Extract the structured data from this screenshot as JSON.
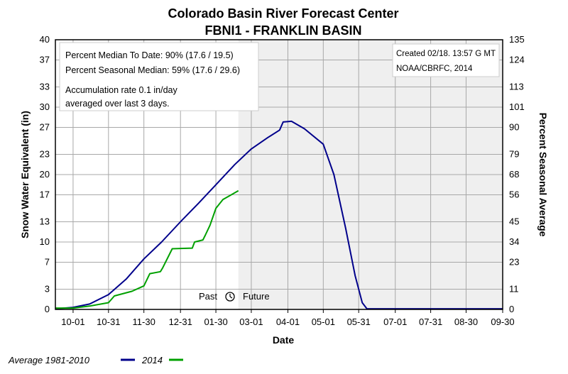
{
  "chart_data": {
    "type": "line",
    "title": "Colorado Basin River Forecast Center",
    "subtitle": "FBNI1 - FRANKLIN BASIN",
    "xlabel": "Date",
    "ylabel": "Snow Water Equivalent (in)",
    "y2label": "Percent Seasonal Average",
    "x_range": [
      "2013-09-16",
      "2014-09-30"
    ],
    "ylim": [
      0,
      40
    ],
    "y_ticks": [
      0,
      3,
      7,
      10,
      13,
      17,
      20,
      23,
      27,
      30,
      33,
      37,
      40
    ],
    "y2_ticks": [
      0,
      11,
      23,
      34,
      45,
      56,
      68,
      79,
      90,
      101,
      113,
      124,
      135
    ],
    "x_ticks": [
      {
        "label": "10-01",
        "date": "2013-10-01"
      },
      {
        "label": "10-31",
        "date": "2013-10-31"
      },
      {
        "label": "11-30",
        "date": "2013-11-30"
      },
      {
        "label": "12-31",
        "date": "2013-12-31"
      },
      {
        "label": "01-30",
        "date": "2014-01-30"
      },
      {
        "label": "03-01",
        "date": "2014-03-01"
      },
      {
        "label": "04-01",
        "date": "2014-04-01"
      },
      {
        "label": "05-01",
        "date": "2014-05-01"
      },
      {
        "label": "05-31",
        "date": "2014-05-31"
      },
      {
        "label": "07-01",
        "date": "2014-07-01"
      },
      {
        "label": "07-31",
        "date": "2014-07-31"
      },
      {
        "label": "08-30",
        "date": "2014-08-30"
      },
      {
        "label": "09-30",
        "date": "2014-09-30"
      }
    ],
    "grid": true,
    "future_shading_start": "2014-02-18",
    "legend_position": "bottom-left",
    "series": [
      {
        "name": "Average 1981-2010",
        "color": "#00008b",
        "points": [
          [
            "2013-09-16",
            0.1
          ],
          [
            "2013-10-01",
            0.3
          ],
          [
            "2013-10-15",
            0.8
          ],
          [
            "2013-10-31",
            2.2
          ],
          [
            "2013-11-15",
            4.5
          ],
          [
            "2013-11-30",
            7.5
          ],
          [
            "2013-12-15",
            10.0
          ],
          [
            "2013-12-31",
            13.0
          ],
          [
            "2014-01-15",
            15.7
          ],
          [
            "2014-01-30",
            18.5
          ],
          [
            "2014-02-15",
            21.5
          ],
          [
            "2014-03-01",
            23.8
          ],
          [
            "2014-03-15",
            25.5
          ],
          [
            "2014-03-25",
            26.6
          ],
          [
            "2014-03-28",
            27.8
          ],
          [
            "2014-04-04",
            27.9
          ],
          [
            "2014-04-15",
            26.8
          ],
          [
            "2014-05-01",
            24.5
          ],
          [
            "2014-05-10",
            20.0
          ],
          [
            "2014-05-20",
            12.0
          ],
          [
            "2014-05-28",
            5.0
          ],
          [
            "2014-06-03",
            1.0
          ],
          [
            "2014-06-07",
            0.1
          ],
          [
            "2014-09-30",
            0.1
          ]
        ]
      },
      {
        "name": "2014",
        "color": "#00a000",
        "points": [
          [
            "2013-09-16",
            0.2
          ],
          [
            "2013-10-01",
            0.2
          ],
          [
            "2013-10-15",
            0.5
          ],
          [
            "2013-10-31",
            1.0
          ],
          [
            "2013-11-05",
            2.0
          ],
          [
            "2013-11-20",
            2.7
          ],
          [
            "2013-11-30",
            3.5
          ],
          [
            "2013-12-05",
            5.3
          ],
          [
            "2013-12-14",
            5.6
          ],
          [
            "2013-12-16",
            6.2
          ],
          [
            "2013-12-24",
            9.0
          ],
          [
            "2014-01-10",
            9.1
          ],
          [
            "2014-01-12",
            10.0
          ],
          [
            "2014-01-19",
            10.3
          ],
          [
            "2014-01-21",
            11.0
          ],
          [
            "2014-01-25",
            12.5
          ],
          [
            "2014-01-30",
            15.0
          ],
          [
            "2014-02-05",
            16.3
          ],
          [
            "2014-02-12",
            17.0
          ],
          [
            "2014-02-18",
            17.6
          ]
        ]
      }
    ]
  },
  "annotations": {
    "left": [
      "Percent Median To Date: 90% (17.6 / 19.5)",
      "Percent Seasonal Median: 59% (17.6 / 29.6)",
      "Accumulation rate 0.1 in/day",
      "averaged over last 3 days."
    ],
    "right": [
      "Created 02/18. 13:57 G MT",
      "NOAA/CBRFC, 2014"
    ],
    "past_label": "Past",
    "future_label": "Future"
  },
  "legend": [
    {
      "label": "Average 1981-2010",
      "color": "#00008b"
    },
    {
      "label": "2014",
      "color": "#00a000"
    }
  ]
}
